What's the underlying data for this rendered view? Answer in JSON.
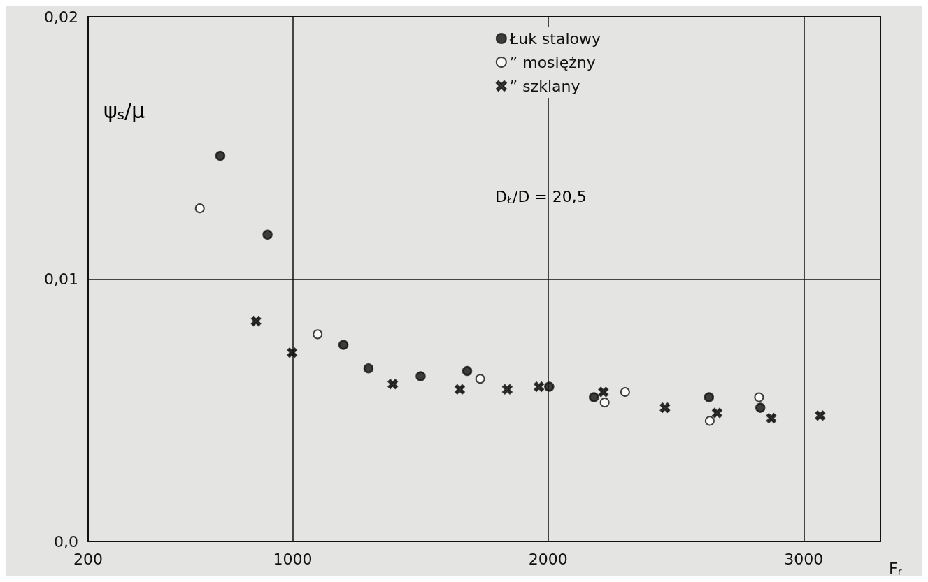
{
  "chart_data": {
    "type": "scatter",
    "xlabel": "F$_{r}$",
    "ylabel": "ψ$_{s}$/μ",
    "annotations": [
      "D$_{Ł}$/D = 20,5"
    ],
    "xlim": [
      200,
      3300
    ],
    "xticks": [
      200,
      1000,
      2000,
      3000
    ],
    "ylim": [
      0,
      0.02
    ],
    "yticks": [
      {
        "value": 0,
        "label": "0,0"
      },
      {
        "value": 0.01,
        "label": "0,01"
      },
      {
        "value": 0.02,
        "label": "0,02"
      }
    ],
    "grid": true,
    "legend": "top",
    "series": [
      {
        "name": "Łuk stalowy",
        "color": "#111111",
        "marker": "circle",
        "x": [
          717,
          902,
          1199,
          1297,
          1501,
          1683,
          2004,
          2179,
          2629,
          2830
        ],
        "values": [
          0.0147,
          0.0117,
          0.0075,
          0.0066,
          0.0063,
          0.0065,
          0.0059,
          0.0055,
          0.0055,
          0.0051
        ]
      },
      {
        "name": "” mosiężny",
        "color": "#111111",
        "marker": "open_circle",
        "x": [
          637,
          1098,
          1734,
          2221,
          2301,
          2632,
          2825
        ],
        "values": [
          0.0127,
          0.0079,
          0.0062,
          0.0053,
          0.0057,
          0.0046,
          0.0055
        ]
      },
      {
        "name": "” szklany",
        "color": "#111111",
        "marker": "cross",
        "x": [
          857,
          998,
          1392,
          1654,
          1840,
          1964,
          2216,
          2457,
          2661,
          2873,
          3064
        ],
        "values": [
          0.0084,
          0.0072,
          0.006,
          0.0058,
          0.0058,
          0.0059,
          0.0057,
          0.0051,
          0.0049,
          0.0047,
          0.0048
        ]
      }
    ]
  }
}
